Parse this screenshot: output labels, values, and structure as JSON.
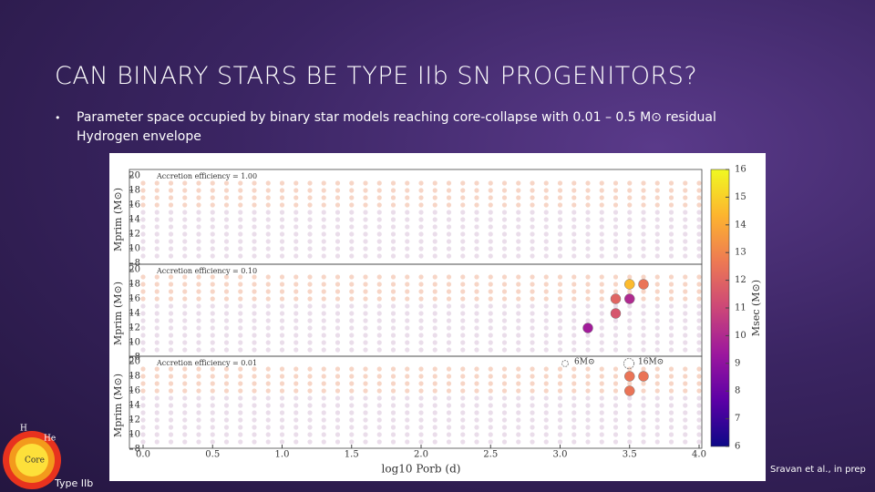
{
  "slide": {
    "title": "CAN BINARY STARS BE TYPE IIb SN PROGENITORS?",
    "bullet": "Parameter space occupied by binary star models reaching core-collapse with 0.01 – 0.5 M⊙ residual Hydrogen envelope",
    "credit": "Sravan et al., in prep",
    "inset_label": "Type IIb",
    "inset_layers": [
      "H",
      "He",
      "Core"
    ]
  },
  "chart_data": [
    {
      "type": "scatter",
      "annotation": "Accretion efficiency = 1.00",
      "ylabel": "Mprim (M⊙)",
      "xlim": [
        0,
        4
      ],
      "ylim": [
        8,
        20
      ],
      "yticks": [
        8,
        10,
        12,
        14,
        16,
        18,
        20
      ],
      "x": [],
      "y": [],
      "msec": []
    },
    {
      "type": "scatter",
      "annotation": "Accretion efficiency = 0.10",
      "ylabel": "Mprim (M⊙)",
      "xlim": [
        0,
        4
      ],
      "ylim": [
        8,
        20
      ],
      "yticks": [
        8,
        10,
        12,
        14,
        16,
        18,
        20
      ],
      "x": [
        3.5,
        3.6,
        3.4,
        3.5,
        3.4,
        3.2
      ],
      "y": [
        18,
        18,
        16,
        16,
        14,
        12
      ],
      "msec": [
        14.5,
        12.5,
        12,
        10,
        11.5,
        9.5
      ]
    },
    {
      "type": "scatter",
      "annotation": "Accretion efficiency = 0.01",
      "ylabel": "Mprim (M⊙)",
      "xlabel": "log10 Porb (d)",
      "xlim": [
        0,
        4
      ],
      "ylim": [
        8,
        20
      ],
      "yticks": [
        8,
        10,
        12,
        14,
        16,
        18,
        20
      ],
      "xticks": [
        {
          "value": 0,
          "label": "0.0"
        },
        {
          "value": 0.5,
          "label": "0.5"
        },
        {
          "value": 1,
          "label": "1.0"
        },
        {
          "value": 1.5,
          "label": "1.5"
        },
        {
          "value": 2,
          "label": "2.0"
        },
        {
          "value": 2.5,
          "label": "2.5"
        },
        {
          "value": 3,
          "label": "3.0"
        },
        {
          "value": 3.5,
          "label": "3.5"
        },
        {
          "value": 4,
          "label": "4.0"
        }
      ],
      "x": [
        3.5,
        3.6,
        3.5
      ],
      "y": [
        18,
        18,
        16
      ],
      "msec": [
        12.5,
        12.5,
        12.5
      ],
      "size_legend": [
        {
          "value": 6,
          "label": "6M⊙"
        },
        {
          "value": 16,
          "label": "16M⊙"
        }
      ],
      "clim": [
        6,
        16
      ],
      "cticks": [
        6,
        7,
        8,
        9,
        10,
        11,
        12,
        13,
        14,
        15,
        16
      ],
      "colorbar_label": "Msec (M⊙)"
    }
  ]
}
